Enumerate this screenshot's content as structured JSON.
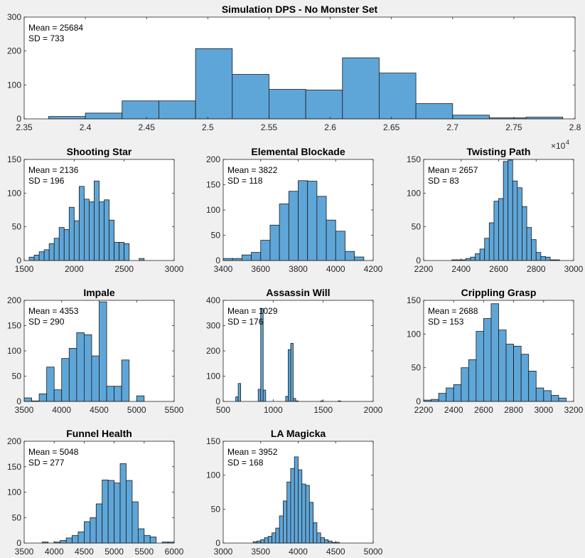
{
  "figure": {
    "background": "#f0f0f0",
    "bar_color": "#5fa6d8",
    "bar_edge": "#1a1a1a"
  },
  "chart_data": [
    {
      "type": "bar",
      "title": "Simulation DPS - No Monster Set",
      "stats": [
        "Mean = 25684",
        "SD = 733"
      ],
      "exponent_label": "×10",
      "exponent": "4",
      "bin_edges": [
        2.37,
        2.4,
        2.43,
        2.46,
        2.49,
        2.52,
        2.55,
        2.58,
        2.61,
        2.64,
        2.67,
        2.7,
        2.73,
        2.76,
        2.79
      ],
      "values": [
        7,
        17,
        53,
        53,
        207,
        131,
        87,
        85,
        180,
        135,
        45,
        11,
        3,
        5
      ],
      "xlim": [
        2.35,
        2.8
      ],
      "ylim": [
        0,
        300
      ],
      "xticks": [
        2.35,
        2.4,
        2.45,
        2.5,
        2.55,
        2.6,
        2.65,
        2.7,
        2.75,
        2.8
      ],
      "xtick_labels": [
        "2.35",
        "2.4",
        "2.45",
        "2.5",
        "2.55",
        "2.6",
        "2.65",
        "2.7",
        "2.75",
        "2.8"
      ],
      "yticks": [
        0,
        100,
        200,
        300
      ],
      "ytick_labels": [
        "0",
        "100",
        "200",
        "300"
      ]
    },
    {
      "type": "bar",
      "title": "Shooting Star",
      "stats": [
        "Mean = 2136",
        "SD = 196"
      ],
      "bin_edges": [
        1550,
        1600,
        1650,
        1700,
        1750,
        1800,
        1850,
        1900,
        1950,
        2000,
        2050,
        2100,
        2150,
        2200,
        2250,
        2300,
        2350,
        2400,
        2450,
        2500,
        2550,
        2600,
        2650,
        2700
      ],
      "values": [
        5,
        8,
        13,
        16,
        25,
        33,
        49,
        46,
        79,
        59,
        110,
        91,
        87,
        118,
        87,
        90,
        60,
        27,
        27,
        25,
        0,
        0,
        3
      ],
      "xlim": [
        1500,
        3000
      ],
      "ylim": [
        0,
        150
      ],
      "xticks": [
        1500,
        2000,
        2500,
        3000
      ],
      "xtick_labels": [
        "1500",
        "2000",
        "2500",
        "3000"
      ],
      "yticks": [
        0,
        50,
        100,
        150
      ],
      "ytick_labels": [
        "0",
        "50",
        "100",
        "150"
      ]
    },
    {
      "type": "bar",
      "title": "Elemental Blockade",
      "stats": [
        "Mean = 3822",
        "SD = 118"
      ],
      "bin_edges": [
        3400,
        3450,
        3500,
        3550,
        3600,
        3650,
        3700,
        3750,
        3800,
        3850,
        3900,
        3950,
        4000,
        4050,
        4100,
        4150
      ],
      "values": [
        4,
        4,
        11,
        16,
        40,
        70,
        112,
        137,
        158,
        157,
        127,
        80,
        58,
        18,
        7
      ],
      "xlim": [
        3400,
        4200
      ],
      "ylim": [
        0,
        200
      ],
      "xticks": [
        3400,
        3600,
        3800,
        4000,
        4200
      ],
      "xtick_labels": [
        "3400",
        "3600",
        "3800",
        "4000",
        "4200"
      ],
      "yticks": [
        0,
        50,
        100,
        150,
        200
      ],
      "ytick_labels": [
        "0",
        "50",
        "100",
        "150",
        "200"
      ]
    },
    {
      "type": "bar",
      "title": "Twisting Path",
      "stats": [
        "Mean = 2657",
        "SD = 83"
      ],
      "bin_edges": [
        2350,
        2375,
        2400,
        2425,
        2450,
        2475,
        2500,
        2525,
        2550,
        2575,
        2600,
        2625,
        2650,
        2675,
        2700,
        2725,
        2750,
        2775,
        2800,
        2825,
        2850,
        2875,
        2900,
        2925
      ],
      "values": [
        1,
        1,
        1,
        3,
        5,
        10,
        17,
        33,
        56,
        88,
        92,
        147,
        149,
        118,
        108,
        80,
        49,
        31,
        12,
        6,
        5,
        1,
        1
      ],
      "xlim": [
        2200,
        3000
      ],
      "ylim": [
        0,
        150
      ],
      "xticks": [
        2200,
        2400,
        2600,
        2800,
        3000
      ],
      "xtick_labels": [
        "2200",
        "2400",
        "2600",
        "2800",
        "3000"
      ],
      "yticks": [
        0,
        50,
        100,
        150
      ],
      "ytick_labels": [
        "0",
        "50",
        "100",
        "150"
      ]
    },
    {
      "type": "bar",
      "title": "Impale",
      "stats": [
        "Mean = 4353",
        "SD = 290"
      ],
      "bin_edges": [
        3500,
        3600,
        3700,
        3800,
        3900,
        4000,
        4100,
        4200,
        4300,
        4400,
        4500,
        4600,
        4700,
        4800,
        4900,
        5000,
        5100
      ],
      "values": [
        7,
        1,
        15,
        68,
        23,
        85,
        105,
        136,
        132,
        90,
        197,
        30,
        30,
        82,
        0,
        11
      ],
      "xlim": [
        3500,
        5500
      ],
      "ylim": [
        0,
        200
      ],
      "xticks": [
        3500,
        4000,
        4500,
        5000,
        5500
      ],
      "xtick_labels": [
        "3500",
        "4000",
        "4500",
        "5000",
        "5500"
      ],
      "yticks": [
        0,
        50,
        100,
        150,
        200
      ],
      "ytick_labels": [
        "0",
        "50",
        "100",
        "150",
        "200"
      ]
    },
    {
      "type": "bar",
      "title": "Assassin Will",
      "stats": [
        "Mean = 1029",
        "SD = 176"
      ],
      "bin_edges": [
        625,
        650,
        675,
        700,
        725,
        750,
        775,
        800,
        825,
        850,
        875,
        900,
        925,
        950,
        975,
        1000,
        1025,
        1050,
        1075,
        1100,
        1125,
        1150,
        1175,
        1200,
        1225,
        1250,
        1275,
        1300,
        1325,
        1350,
        1375,
        1400,
        1425,
        1450,
        1475,
        1500,
        1525,
        1550,
        1575,
        1600,
        1625,
        1650,
        1675
      ],
      "values": [
        18,
        71,
        0,
        0,
        0,
        0,
        0,
        0,
        0,
        48,
        368,
        45,
        0,
        0,
        0,
        0,
        0,
        0,
        0,
        0,
        20,
        205,
        230,
        12,
        2,
        0,
        0,
        0,
        0,
        0,
        0,
        0,
        0,
        0,
        2,
        0,
        0,
        0,
        0,
        0,
        0,
        2
      ],
      "xlim": [
        500,
        2000
      ],
      "ylim": [
        0,
        400
      ],
      "xticks": [
        500,
        1000,
        1500,
        2000
      ],
      "xtick_labels": [
        "500",
        "1000",
        "1500",
        "2000"
      ],
      "yticks": [
        0,
        100,
        200,
        300,
        400
      ],
      "ytick_labels": [
        "0",
        "100",
        "200",
        "300",
        "400"
      ]
    },
    {
      "type": "bar",
      "title": "Crippling Grasp",
      "stats": [
        "Mean = 2688",
        "SD = 153"
      ],
      "bin_edges": [
        2200,
        2250,
        2300,
        2350,
        2400,
        2450,
        2500,
        2550,
        2600,
        2650,
        2700,
        2750,
        2800,
        2850,
        2900,
        2950,
        3000,
        3050,
        3100,
        3150
      ],
      "values": [
        2,
        3,
        12,
        20,
        25,
        50,
        62,
        104,
        123,
        145,
        106,
        85,
        82,
        70,
        45,
        20,
        16,
        9,
        5
      ],
      "xlim": [
        2200,
        3200
      ],
      "ylim": [
        0,
        150
      ],
      "xticks": [
        2200,
        2400,
        2600,
        2800,
        3000,
        3200
      ],
      "xtick_labels": [
        "2200",
        "2400",
        "2600",
        "2800",
        "3000",
        "3200"
      ],
      "yticks": [
        0,
        50,
        100,
        150
      ],
      "ytick_labels": [
        "0",
        "50",
        "100",
        "150"
      ]
    },
    {
      "type": "bar",
      "title": "Funnel Health",
      "stats": [
        "Mean = 5048",
        "SD = 277"
      ],
      "bin_edges": [
        3600,
        3700,
        3800,
        3900,
        4000,
        4100,
        4200,
        4300,
        4400,
        4500,
        4600,
        4700,
        4800,
        4900,
        5000,
        5100,
        5200,
        5300,
        5400,
        5500,
        5600,
        5700,
        5800,
        5900,
        6000
      ],
      "values": [
        0,
        0,
        2,
        0,
        2,
        5,
        10,
        15,
        22,
        42,
        50,
        77,
        124,
        123,
        118,
        156,
        123,
        81,
        28,
        15,
        12,
        0,
        2,
        2
      ],
      "xlim": [
        3500,
        6000
      ],
      "ylim": [
        0,
        200
      ],
      "xticks": [
        3500,
        4000,
        4500,
        5000,
        5500,
        6000
      ],
      "xtick_labels": [
        "3500",
        "4000",
        "4500",
        "5000",
        "5500",
        "6000"
      ],
      "yticks": [
        0,
        50,
        100,
        150,
        200
      ],
      "ytick_labels": [
        "0",
        "50",
        "100",
        "150",
        "200"
      ]
    },
    {
      "type": "bar",
      "title": "LA Magicka",
      "stats": [
        "Mean = 3952",
        "SD = 168"
      ],
      "bin_edges": [
        3400,
        3450,
        3500,
        3550,
        3600,
        3650,
        3700,
        3750,
        3800,
        3850,
        3900,
        3950,
        4000,
        4050,
        4100,
        4150,
        4200,
        4250,
        4300,
        4350,
        4400,
        4450,
        4500,
        4550
      ],
      "values": [
        2,
        3,
        5,
        8,
        10,
        15,
        22,
        40,
        62,
        90,
        110,
        127,
        108,
        87,
        85,
        60,
        30,
        15,
        8,
        5,
        3,
        1,
        1
      ],
      "xlim": [
        3000,
        5000
      ],
      "ylim": [
        0,
        150
      ],
      "xticks": [
        3000,
        3500,
        4000,
        4500,
        5000
      ],
      "xtick_labels": [
        "3000",
        "3500",
        "4000",
        "4500",
        "5000"
      ],
      "yticks": [
        0,
        50,
        100,
        150
      ],
      "ytick_labels": [
        "0",
        "50",
        "100",
        "150"
      ]
    }
  ]
}
